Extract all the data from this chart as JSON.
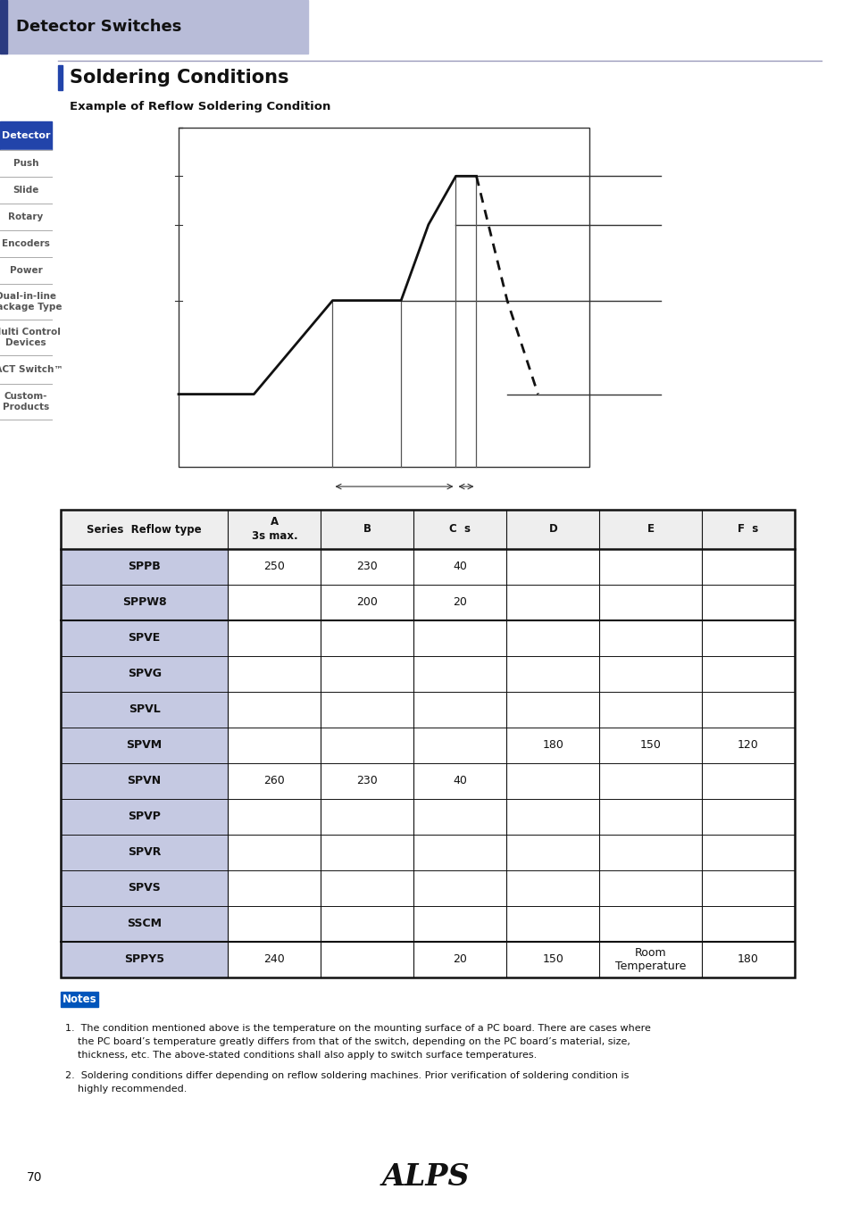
{
  "page_title": "Detector Switches",
  "section_title": "Soldering Conditions",
  "subsection_title": "Example of Reflow Soldering Condition",
  "header_bg": "#b8bcd8",
  "header_bar_color": "#2a3a80",
  "sidebar_items": [
    "Detector",
    "Push",
    "Slide",
    "Rotary",
    "Encoders",
    "Power",
    "Dual-in-line\nPackage Type",
    "Multi Control\nDevices",
    "TACT Switch™",
    "Custom-\nProducts"
  ],
  "sidebar_active_bg": "#2244aa",
  "sidebar_active_text": "#ffffff",
  "table_header_cols": [
    "Series  Reflow type",
    "A\n3s max.",
    "B",
    "C  s",
    "D",
    "E",
    "F  s"
  ],
  "table_col_widths": [
    1.8,
    1.0,
    1.0,
    1.0,
    1.0,
    1.1,
    1.0
  ],
  "table_rows": [
    {
      "series": "SPPB",
      "A": "250",
      "B": "230",
      "C": "40",
      "D": "",
      "E": "",
      "F": ""
    },
    {
      "series": "SPPW8",
      "A": "",
      "B": "200",
      "C": "20",
      "D": "",
      "E": "",
      "F": ""
    },
    {
      "series": "SPVE",
      "A": "",
      "B": "",
      "C": "",
      "D": "",
      "E": "",
      "F": ""
    },
    {
      "series": "SPVG",
      "A": "",
      "B": "",
      "C": "",
      "D": "",
      "E": "",
      "F": ""
    },
    {
      "series": "SPVL",
      "A": "",
      "B": "",
      "C": "",
      "D": "",
      "E": "",
      "F": ""
    },
    {
      "series": "SPVM",
      "A": "",
      "B": "",
      "C": "",
      "D": "180",
      "E": "150",
      "F": "120"
    },
    {
      "series": "SPVN",
      "A": "260",
      "B": "230",
      "C": "40",
      "D": "",
      "E": "",
      "F": ""
    },
    {
      "series": "SPVP",
      "A": "",
      "B": "",
      "C": "",
      "D": "",
      "E": "",
      "F": ""
    },
    {
      "series": "SPVR",
      "A": "",
      "B": "",
      "C": "",
      "D": "",
      "E": "",
      "F": ""
    },
    {
      "series": "SPVS",
      "A": "",
      "B": "",
      "C": "",
      "D": "",
      "E": "",
      "F": ""
    },
    {
      "series": "SSCM",
      "A": "",
      "B": "",
      "C": "",
      "D": "",
      "E": "",
      "F": ""
    },
    {
      "series": "SPPY5",
      "A": "240",
      "B": "",
      "C": "20",
      "D": "150",
      "E": "Room\nTemperature",
      "F": "180"
    }
  ],
  "row_highlight_color": "#c5c9e2",
  "table_line_color": "#222222",
  "notes_title": "Notes",
  "notes_bg": "#0055bb",
  "note1": "The condition mentioned above is the temperature on the mounting surface of a PC board. There are cases where\n   the PC board’s temperature greatly differs from that of the switch, depending on the PC board’s material, size,\n   thickness, etc. The above-stated conditions shall also apply to switch surface temperatures.",
  "note2": "Soldering conditions differ depending on reflow soldering machines. Prior verification of soldering condition is\n   highly recommended.",
  "page_number": "70",
  "alps_logo": "ALPS",
  "bg_color": "#ffffff",
  "chart_profile_t": [
    0.0,
    2.2,
    4.5,
    6.5,
    7.3,
    8.1,
    8.7,
    9.6,
    10.5
  ],
  "chart_profile_T": [
    125,
    125,
    183,
    183,
    230,
    260,
    260,
    183,
    125
  ],
  "chart_t_min": 0,
  "chart_t_max": 12,
  "chart_T_min": 80,
  "chart_T_max": 290
}
